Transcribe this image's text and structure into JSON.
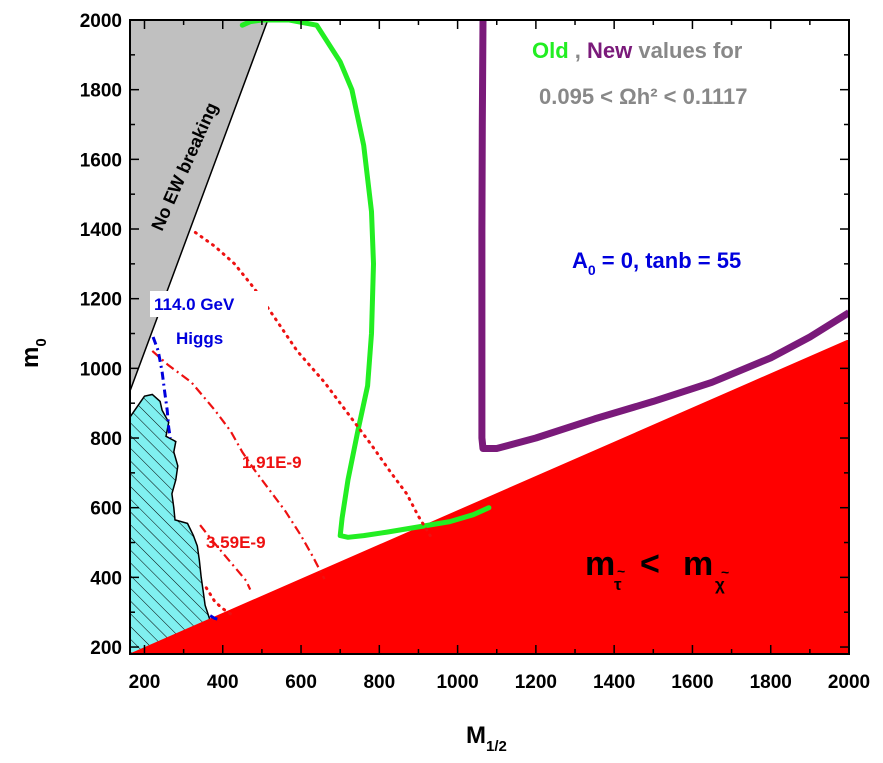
{
  "chart_data": {
    "type": "line",
    "xlabel": {
      "main": "M",
      "sub": "1/2"
    },
    "ylabel": {
      "main": "m",
      "sub": "0"
    },
    "xlim": [
      163,
      2000
    ],
    "ylim": [
      180,
      2000
    ],
    "x_ticks": [
      200,
      400,
      600,
      800,
      1000,
      1200,
      1400,
      1600,
      1800,
      2000
    ],
    "x_tick_labels": [
      "200",
      "400",
      "600",
      "800",
      "1000",
      "1200",
      "1400",
      "1600",
      "1800",
      "2000"
    ],
    "y_ticks": [
      200,
      400,
      600,
      800,
      1000,
      1200,
      1400,
      1600,
      1800,
      2000
    ],
    "y_tick_labels": [
      "200",
      "400",
      "600",
      "800",
      "1000",
      "1200",
      "1400",
      "1600",
      "1800",
      "2000"
    ],
    "grid": false,
    "colors": {
      "old": "#22ee22",
      "new": "#7a1a7a",
      "stau": "#ff0000",
      "higgs": "#0000dd",
      "gray": "#c0c0c0",
      "cyan": "#80f0f0",
      "caption": "#888888",
      "bsg": "#ee1111"
    },
    "annotations": {
      "legend_old": "Old",
      "legend_sep": ",",
      "legend_new": "New",
      "legend_rest": "values for",
      "omega_line": "0.095 <  Ωh² < 0.1117",
      "params": {
        "a": "A",
        "a_sub": "0",
        "rest": " = 0, tanb = 55"
      },
      "no_ewsb": "No EW breaking",
      "higgs_mass": "114.0 GeV",
      "higgs_word": "Higgs",
      "bsg_1": "1.91E-9",
      "bsg_2": "3.59E-9",
      "stau_region": {
        "m1": "m",
        "s1": "τ",
        "lt": "<",
        "m2": "m",
        "s2": "χ",
        "tilde": "~"
      }
    },
    "regions": {
      "stau_lsp": [
        [
          163,
          180
        ],
        [
          1995,
          1080
        ],
        [
          2000,
          1080
        ],
        [
          2000,
          180
        ]
      ],
      "no_ewsb": [
        [
          163,
          2000
        ],
        [
          163,
          935
        ],
        [
          515,
          2000
        ]
      ],
      "cyan_excluded": [
        [
          163,
          860
        ],
        [
          200,
          920
        ],
        [
          220,
          925
        ],
        [
          240,
          905
        ],
        [
          245,
          880
        ],
        [
          262,
          845
        ],
        [
          255,
          805
        ],
        [
          280,
          790
        ],
        [
          275,
          760
        ],
        [
          285,
          720
        ],
        [
          280,
          680
        ],
        [
          270,
          640
        ],
        [
          275,
          600
        ],
        [
          278,
          565
        ],
        [
          310,
          555
        ],
        [
          325,
          520
        ],
        [
          335,
          490
        ],
        [
          340,
          450
        ],
        [
          345,
          400
        ],
        [
          350,
          360
        ],
        [
          355,
          320
        ],
        [
          365,
          285
        ],
        [
          368,
          275
        ],
        [
          205,
          195
        ],
        [
          205,
          180
        ],
        [
          163,
          180
        ]
      ]
    },
    "series": [
      {
        "key": "old_band",
        "style": "band",
        "points": [
          [
            450,
            1985
          ],
          [
            470,
            1995
          ],
          [
            500,
            2000
          ],
          [
            570,
            2000
          ],
          [
            640,
            1985
          ],
          [
            700,
            1880
          ],
          [
            730,
            1800
          ],
          [
            760,
            1640
          ],
          [
            780,
            1450
          ],
          [
            785,
            1300
          ],
          [
            780,
            1100
          ],
          [
            770,
            950
          ],
          [
            745,
            820
          ],
          [
            720,
            680
          ],
          [
            705,
            570
          ],
          [
            700,
            520
          ],
          [
            720,
            515
          ],
          [
            760,
            520
          ],
          [
            820,
            530
          ],
          [
            900,
            545
          ],
          [
            980,
            560
          ],
          [
            1040,
            580
          ],
          [
            1080,
            600
          ]
        ]
      },
      {
        "key": "new_band",
        "style": "band",
        "points": [
          [
            1065,
            2000
          ],
          [
            1063,
            1700
          ],
          [
            1062,
            1400
          ],
          [
            1062,
            1100
          ],
          [
            1062,
            900
          ],
          [
            1062,
            800
          ],
          [
            1065,
            770
          ],
          [
            1100,
            770
          ],
          [
            1200,
            800
          ],
          [
            1350,
            855
          ],
          [
            1500,
            905
          ],
          [
            1650,
            960
          ],
          [
            1800,
            1030
          ],
          [
            1900,
            1090
          ],
          [
            2000,
            1160
          ]
        ]
      },
      {
        "key": "bsg_1",
        "style": "dashdot",
        "points": [
          [
            220,
            1050
          ],
          [
            260,
            1010
          ],
          [
            320,
            960
          ],
          [
            380,
            880
          ],
          [
            420,
            820
          ],
          [
            450,
            760
          ],
          [
            480,
            710
          ],
          [
            520,
            650
          ],
          [
            560,
            590
          ],
          [
            600,
            520
          ],
          [
            630,
            460
          ],
          [
            660,
            395
          ]
        ]
      },
      {
        "key": "bsg_2",
        "style": "dashdot",
        "points": [
          [
            342,
            550
          ],
          [
            370,
            510
          ],
          [
            400,
            470
          ],
          [
            430,
            430
          ],
          [
            460,
            390
          ],
          [
            470,
            365
          ]
        ]
      },
      {
        "key": "bsg_dotted_outer",
        "style": "dotted",
        "points": [
          [
            330,
            1390
          ],
          [
            380,
            1350
          ],
          [
            430,
            1300
          ],
          [
            480,
            1230
          ],
          [
            530,
            1150
          ],
          [
            590,
            1050
          ],
          [
            660,
            960
          ],
          [
            720,
            870
          ],
          [
            780,
            780
          ],
          [
            830,
            700
          ],
          [
            870,
            640
          ],
          [
            900,
            575
          ],
          [
            930,
            520
          ]
        ]
      },
      {
        "key": "bsg_dotted_inner",
        "style": "dotted",
        "points": [
          [
            358,
            370
          ],
          [
            380,
            330
          ],
          [
            400,
            310
          ],
          [
            420,
            295
          ]
        ]
      },
      {
        "key": "higgs",
        "style": "dashdot-blue",
        "points": [
          [
            222,
            1090
          ],
          [
            235,
            1050
          ],
          [
            245,
            990
          ],
          [
            252,
            930
          ],
          [
            258,
            880
          ],
          [
            262,
            830
          ],
          [
            266,
            800
          ]
        ]
      },
      {
        "key": "higgs_low",
        "style": "dashdot-blue",
        "points": [
          [
            368,
            290
          ],
          [
            380,
            282
          ],
          [
            395,
            278
          ]
        ]
      }
    ]
  }
}
